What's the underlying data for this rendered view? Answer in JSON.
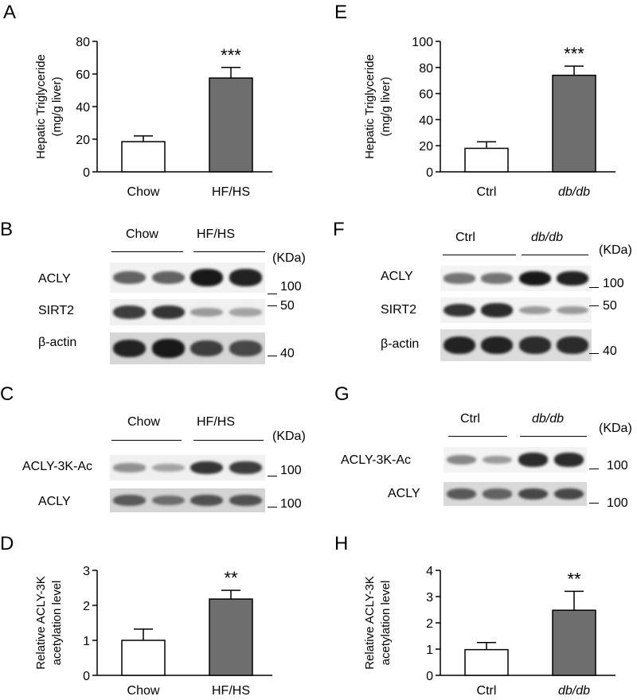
{
  "panels": {
    "A": {
      "letter": "A"
    },
    "B": {
      "letter": "B"
    },
    "C": {
      "letter": "C"
    },
    "D": {
      "letter": "D"
    },
    "E": {
      "letter": "E"
    },
    "F": {
      "letter": "F"
    },
    "G": {
      "letter": "G"
    },
    "H": {
      "letter": "H"
    }
  },
  "blots": {
    "B": {
      "groups": [
        "Chow",
        "HF/HS"
      ],
      "kda": "(KDa)",
      "rows": [
        {
          "label": "ACLY",
          "mw": "100",
          "intensities": [
            0.55,
            0.55,
            0.95,
            0.9
          ]
        },
        {
          "label": "SIRT2",
          "mw": "50",
          "intensities": [
            0.75,
            0.8,
            0.25,
            0.2
          ]
        },
        {
          "label": "β-actin",
          "mw": "40",
          "intensities": [
            0.9,
            0.95,
            0.75,
            0.7
          ]
        }
      ]
    },
    "C": {
      "groups": [
        "Chow",
        "HF/HS"
      ],
      "kda": "(KDa)",
      "rows": [
        {
          "label": "ACLY-3K-Ac",
          "mw": "100",
          "intensities": [
            0.3,
            0.2,
            0.8,
            0.75
          ]
        },
        {
          "label": "ACLY",
          "mw": "100",
          "intensities": [
            0.6,
            0.5,
            0.65,
            0.65
          ]
        }
      ]
    },
    "F": {
      "groups": [
        "Ctrl",
        "db/db"
      ],
      "kda": "(KDa)",
      "rows": [
        {
          "label": "ACLY",
          "mw": "100",
          "intensities": [
            0.45,
            0.45,
            0.95,
            0.9
          ]
        },
        {
          "label": "SIRT2",
          "mw": "50",
          "intensities": [
            0.8,
            0.85,
            0.25,
            0.25
          ]
        },
        {
          "label": "β-actin",
          "mw": "40",
          "intensities": [
            0.9,
            0.9,
            0.85,
            0.85
          ]
        }
      ]
    },
    "G": {
      "groups": [
        "Ctrl",
        "db/db"
      ],
      "kda": "(KDa)",
      "rows": [
        {
          "label": "ACLY-3K-Ac",
          "mw": "100",
          "intensities": [
            0.35,
            0.25,
            0.85,
            0.85
          ]
        },
        {
          "label": "ACLY",
          "mw": "100",
          "intensities": [
            0.6,
            0.55,
            0.7,
            0.7
          ]
        }
      ]
    }
  },
  "chart_data": [
    {
      "panel": "A",
      "type": "bar",
      "categories": [
        "Chow",
        "HF/HS"
      ],
      "values": [
        18.5,
        57.5
      ],
      "errors": [
        3.5,
        6.5
      ],
      "fills": [
        "#ffffff",
        "#6e6e6e"
      ],
      "significance": [
        "",
        "***"
      ],
      "ylabel": [
        "Hepatic Triglyceride",
        "(mg/g liver)"
      ],
      "ylim": [
        0,
        80
      ],
      "yticks": [
        0,
        20,
        40,
        60,
        80
      ],
      "italic_categories": [
        false,
        false
      ]
    },
    {
      "panel": "E",
      "type": "bar",
      "categories": [
        "Ctrl",
        "db/db"
      ],
      "values": [
        18,
        74
      ],
      "errors": [
        5,
        7
      ],
      "fills": [
        "#ffffff",
        "#6e6e6e"
      ],
      "significance": [
        "",
        "***"
      ],
      "ylabel": [
        "Hepatic Triglyceride",
        "(mg/g liver)"
      ],
      "ylim": [
        0,
        100
      ],
      "yticks": [
        0,
        20,
        40,
        60,
        80,
        100
      ],
      "italic_categories": [
        false,
        true
      ]
    },
    {
      "panel": "D",
      "type": "bar",
      "categories": [
        "Chow",
        "HF/HS"
      ],
      "values": [
        1.0,
        2.18
      ],
      "errors": [
        0.32,
        0.25
      ],
      "fills": [
        "#ffffff",
        "#6e6e6e"
      ],
      "significance": [
        "",
        "**"
      ],
      "ylabel": [
        "Relative ACLY-3K",
        "acetylation level"
      ],
      "ylim": [
        0,
        3
      ],
      "yticks": [
        0,
        1,
        2,
        3
      ],
      "italic_categories": [
        false,
        false
      ]
    },
    {
      "panel": "H",
      "type": "bar",
      "categories": [
        "Ctrl",
        "db/db"
      ],
      "values": [
        0.98,
        2.48
      ],
      "errors": [
        0.27,
        0.72
      ],
      "fills": [
        "#ffffff",
        "#6e6e6e"
      ],
      "significance": [
        "",
        "**"
      ],
      "ylabel": [
        "Relative ACLY-3K",
        "acetylation level"
      ],
      "ylim": [
        0,
        4
      ],
      "yticks": [
        0,
        1,
        2,
        3,
        4
      ],
      "italic_categories": [
        false,
        true
      ]
    }
  ]
}
